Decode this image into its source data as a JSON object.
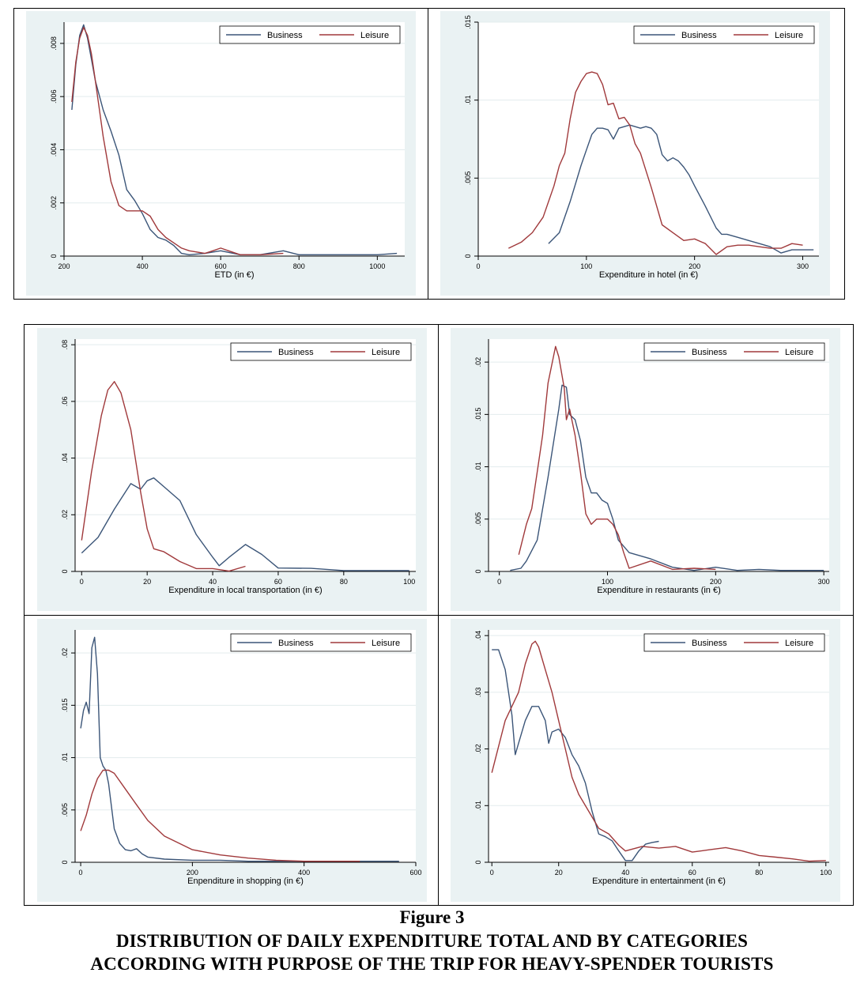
{
  "figure": {
    "number_label": "Figure 3",
    "title_line1": "DISTRIBUTION OF DAILY EXPENDITURE TOTAL AND BY CATEGORIES",
    "title_line2": "ACCORDING WITH PURPOSE OF THE TRIP FOR HEAVY-SPENDER TOURISTS"
  },
  "colors": {
    "business": "#3b5578",
    "leisure": "#a0393b",
    "plot_bg": "#eaf2f3",
    "plot_area": "#ffffff",
    "grid": "#e3eced"
  },
  "chart_data": [
    {
      "type": "line",
      "xlabel": "ETD (in €)",
      "ylabel": "",
      "xlim": [
        200,
        1070
      ],
      "ylim": [
        0,
        0.0088
      ],
      "xticks": [
        200,
        400,
        600,
        800,
        1000
      ],
      "xtick_labels": [
        "200",
        "400",
        "600",
        "800",
        "1000"
      ],
      "yticks": [
        0,
        0.002,
        0.004,
        0.006,
        0.008
      ],
      "ytick_labels": [
        "0",
        ".002",
        ".004",
        ".006",
        ".008"
      ],
      "legend": "top-right",
      "series": [
        {
          "name": "Business",
          "x": [
            220,
            230,
            240,
            250,
            260,
            270,
            280,
            300,
            320,
            340,
            360,
            380,
            400,
            420,
            440,
            460,
            480,
            500,
            520,
            560,
            600,
            650,
            700,
            760,
            800,
            900,
            1000,
            1050
          ],
          "y": [
            0.0055,
            0.0072,
            0.0083,
            0.0087,
            0.0082,
            0.0074,
            0.0066,
            0.0055,
            0.0047,
            0.0038,
            0.0025,
            0.0021,
            0.0016,
            0.001,
            0.0007,
            0.0006,
            0.0004,
            0.0001,
            5e-05,
            0.0001,
            0.0002,
            5e-05,
            5e-05,
            0.0002,
            5e-05,
            5e-05,
            5e-05,
            0.0001
          ]
        },
        {
          "name": "Leisure",
          "x": [
            220,
            230,
            240,
            250,
            260,
            270,
            280,
            300,
            320,
            340,
            360,
            380,
            400,
            420,
            440,
            460,
            480,
            500,
            520,
            560,
            580,
            600,
            620,
            650,
            700,
            760
          ],
          "y": [
            0.0058,
            0.0073,
            0.0082,
            0.0086,
            0.0083,
            0.0076,
            0.0066,
            0.0045,
            0.0028,
            0.0019,
            0.0017,
            0.0017,
            0.0017,
            0.0015,
            0.001,
            0.0007,
            0.0005,
            0.0003,
            0.0002,
            0.0001,
            0.0002,
            0.0003,
            0.0002,
            5e-05,
            5e-05,
            0.0001
          ]
        }
      ]
    },
    {
      "type": "line",
      "xlabel": "Expenditure in hotel (in €)",
      "ylabel": "",
      "xlim": [
        0,
        315
      ],
      "ylim": [
        0,
        0.015
      ],
      "xticks": [
        0,
        100,
        200,
        300
      ],
      "xtick_labels": [
        "0",
        "100",
        "200",
        "300"
      ],
      "yticks": [
        0,
        0.005,
        0.01,
        0.015
      ],
      "ytick_labels": [
        "0",
        ".005",
        ".01",
        ".015"
      ],
      "legend": "top-right",
      "series": [
        {
          "name": "Business",
          "x": [
            65,
            75,
            85,
            95,
            100,
            105,
            110,
            115,
            120,
            125,
            130,
            135,
            140,
            145,
            150,
            155,
            160,
            165,
            170,
            175,
            180,
            185,
            190,
            195,
            200,
            210,
            220,
            225,
            230,
            240,
            250,
            260,
            270,
            280,
            290,
            300,
            310
          ],
          "y": [
            0.0008,
            0.0015,
            0.0035,
            0.0058,
            0.0068,
            0.0078,
            0.0082,
            0.0082,
            0.0081,
            0.0075,
            0.0082,
            0.0083,
            0.0084,
            0.0083,
            0.0082,
            0.0083,
            0.0082,
            0.0078,
            0.0065,
            0.0061,
            0.0063,
            0.0061,
            0.0057,
            0.0052,
            0.0045,
            0.0032,
            0.0018,
            0.0014,
            0.0014,
            0.0012,
            0.001,
            0.0008,
            0.0006,
            0.0002,
            0.0004,
            0.0004,
            0.0004
          ]
        },
        {
          "name": "Leisure",
          "x": [
            28,
            40,
            50,
            60,
            70,
            75,
            80,
            85,
            90,
            95,
            100,
            105,
            110,
            115,
            120,
            125,
            130,
            135,
            140,
            145,
            150,
            160,
            170,
            180,
            190,
            200,
            210,
            220,
            230,
            240,
            250,
            260,
            270,
            280,
            290,
            300
          ],
          "y": [
            0.0005,
            0.0009,
            0.0015,
            0.0025,
            0.0045,
            0.0058,
            0.0066,
            0.0088,
            0.0105,
            0.0112,
            0.0117,
            0.0118,
            0.0117,
            0.011,
            0.0097,
            0.0098,
            0.0088,
            0.0089,
            0.0084,
            0.0072,
            0.0066,
            0.0044,
            0.002,
            0.0015,
            0.001,
            0.0011,
            0.0008,
            0.0001,
            0.0006,
            0.0007,
            0.0007,
            0.0006,
            0.0005,
            0.0005,
            0.0008,
            0.0007
          ]
        }
      ]
    },
    {
      "type": "line",
      "xlabel": "Expenditure in local transportation (in €)",
      "ylabel": "",
      "xlim": [
        -2,
        102
      ],
      "ylim": [
        0,
        0.082
      ],
      "xticks": [
        0,
        20,
        40,
        60,
        80,
        100
      ],
      "xtick_labels": [
        "0",
        "20",
        "40",
        "60",
        "80",
        "100"
      ],
      "yticks": [
        0,
        0.02,
        0.04,
        0.06,
        0.08
      ],
      "ytick_labels": [
        "0",
        ".02",
        ".04",
        ".06",
        ".08"
      ],
      "legend": "top-right",
      "series": [
        {
          "name": "Business",
          "x": [
            0,
            5,
            10,
            15,
            18,
            20,
            22,
            25,
            30,
            35,
            40,
            42,
            45,
            50,
            55,
            60,
            70,
            80,
            90,
            100
          ],
          "y": [
            0.0065,
            0.012,
            0.022,
            0.031,
            0.029,
            0.032,
            0.033,
            0.03,
            0.025,
            0.013,
            0.005,
            0.002,
            0.005,
            0.0095,
            0.006,
            0.0012,
            0.0011,
            0.0003,
            0.0003,
            0.0003
          ]
        },
        {
          "name": "Leisure",
          "x": [
            0,
            3,
            6,
            8,
            10,
            12,
            15,
            18,
            20,
            22,
            25,
            30,
            35,
            40,
            45,
            50
          ],
          "y": [
            0.011,
            0.035,
            0.055,
            0.064,
            0.067,
            0.063,
            0.05,
            0.028,
            0.015,
            0.008,
            0.007,
            0.0035,
            0.001,
            0.001,
            0.0001,
            0.0018
          ]
        }
      ]
    },
    {
      "type": "line",
      "xlabel": "Expenditure in restaurants (in €)",
      "ylabel": "",
      "xlim": [
        -10,
        305
      ],
      "ylim": [
        0,
        0.0222
      ],
      "xticks": [
        0,
        100,
        200,
        300
      ],
      "xtick_labels": [
        "0",
        "100",
        "200",
        "300"
      ],
      "yticks": [
        0,
        0.005,
        0.01,
        0.015,
        0.02
      ],
      "ytick_labels": [
        "0",
        ".005",
        ".01",
        ".015",
        ".02"
      ],
      "legend": "top-right",
      "series": [
        {
          "name": "Business",
          "x": [
            10,
            20,
            25,
            35,
            45,
            55,
            58,
            62,
            65,
            70,
            75,
            80,
            85,
            90,
            95,
            100,
            105,
            110,
            120,
            140,
            160,
            180,
            200,
            220,
            240,
            260,
            280,
            300
          ],
          "y": [
            0.0001,
            0.0003,
            0.001,
            0.003,
            0.009,
            0.0155,
            0.0178,
            0.0176,
            0.015,
            0.0145,
            0.0125,
            0.009,
            0.0075,
            0.0075,
            0.0068,
            0.0065,
            0.005,
            0.003,
            0.0018,
            0.0012,
            0.0004,
            0.0001,
            0.0004,
            0.0001,
            0.0002,
            0.0001,
            0.0001,
            0.0001
          ]
        },
        {
          "name": "Leisure",
          "x": [
            18,
            25,
            30,
            35,
            40,
            45,
            50,
            52,
            55,
            60,
            62,
            65,
            70,
            75,
            80,
            85,
            90,
            95,
            100,
            105,
            110,
            115,
            120,
            140,
            160,
            180,
            200
          ],
          "y": [
            0.0016,
            0.0045,
            0.006,
            0.0095,
            0.013,
            0.018,
            0.0205,
            0.0215,
            0.0205,
            0.0175,
            0.0145,
            0.0155,
            0.013,
            0.0095,
            0.0055,
            0.0045,
            0.005,
            0.005,
            0.005,
            0.0045,
            0.0035,
            0.0018,
            0.0003,
            0.001,
            0.0002,
            0.0003,
            0.0002
          ]
        }
      ]
    },
    {
      "type": "line",
      "xlabel": "Enpenditure in shopping (in €)",
      "ylabel": "",
      "xlim": [
        -10,
        600
      ],
      "ylim": [
        0,
        0.0222
      ],
      "xticks": [
        0,
        200,
        400,
        600
      ],
      "xtick_labels": [
        "0",
        "200",
        "400",
        "600"
      ],
      "yticks": [
        0,
        0.005,
        0.01,
        0.015,
        0.02
      ],
      "ytick_labels": [
        "0",
        ".005",
        ".01",
        ".015",
        ".02"
      ],
      "legend": "top-right",
      "series": [
        {
          "name": "Business",
          "x": [
            0,
            5,
            10,
            15,
            20,
            25,
            30,
            35,
            40,
            45,
            50,
            60,
            70,
            80,
            90,
            100,
            110,
            120,
            150,
            200,
            250,
            300,
            400,
            500,
            570
          ],
          "y": [
            0.0128,
            0.0145,
            0.0153,
            0.0142,
            0.0205,
            0.0215,
            0.018,
            0.01,
            0.0092,
            0.0088,
            0.0075,
            0.0032,
            0.0018,
            0.0012,
            0.0011,
            0.0013,
            0.0008,
            0.0005,
            0.0003,
            0.0002,
            0.0002,
            0.0001,
            0.0001,
            0.0001,
            0.0001
          ]
        },
        {
          "name": "Leisure",
          "x": [
            0,
            10,
            20,
            30,
            40,
            50,
            60,
            80,
            100,
            120,
            150,
            200,
            250,
            300,
            350,
            400,
            450,
            500
          ],
          "y": [
            0.003,
            0.0045,
            0.0065,
            0.008,
            0.0088,
            0.0088,
            0.0085,
            0.007,
            0.0055,
            0.004,
            0.0025,
            0.0012,
            0.0007,
            0.0004,
            0.0002,
            0.0001,
            0.0001,
            0.0001
          ]
        }
      ]
    },
    {
      "type": "line",
      "xlabel": "Expenditure in entertainment (in €)",
      "ylabel": "",
      "xlim": [
        -1,
        101
      ],
      "ylim": [
        0,
        0.041
      ],
      "xticks": [
        0,
        20,
        40,
        60,
        80,
        100
      ],
      "xtick_labels": [
        "0",
        "20",
        "40",
        "60",
        "80",
        "100"
      ],
      "yticks": [
        0,
        0.01,
        0.02,
        0.03,
        0.04
      ],
      "ytick_labels": [
        "0",
        ".01",
        ".02",
        ".03",
        ".04"
      ],
      "legend": "top-right",
      "series": [
        {
          "name": "Business",
          "x": [
            0,
            2,
            4,
            6,
            7,
            8,
            10,
            12,
            14,
            16,
            17,
            18,
            20,
            22,
            24,
            26,
            28,
            30,
            32,
            34,
            36,
            38,
            40,
            42,
            44,
            46,
            48,
            50
          ],
          "y": [
            0.0375,
            0.0375,
            0.034,
            0.026,
            0.019,
            0.021,
            0.025,
            0.0275,
            0.0275,
            0.025,
            0.021,
            0.023,
            0.0235,
            0.022,
            0.019,
            0.017,
            0.014,
            0.009,
            0.005,
            0.0045,
            0.0038,
            0.002,
            0.0003,
            0.0003,
            0.002,
            0.0032,
            0.0035,
            0.0037
          ]
        },
        {
          "name": "Leisure",
          "x": [
            0,
            4,
            8,
            10,
            12,
            13,
            14,
            16,
            18,
            20,
            22,
            24,
            26,
            30,
            32,
            35,
            38,
            40,
            45,
            50,
            55,
            60,
            65,
            70,
            75,
            80,
            85,
            90,
            95,
            100
          ],
          "y": [
            0.0158,
            0.025,
            0.03,
            0.035,
            0.0385,
            0.039,
            0.038,
            0.034,
            0.03,
            0.025,
            0.02,
            0.015,
            0.012,
            0.008,
            0.006,
            0.005,
            0.003,
            0.002,
            0.0028,
            0.0025,
            0.0028,
            0.0018,
            0.0022,
            0.0026,
            0.002,
            0.0012,
            0.0009,
            0.0006,
            0.0002,
            0.0003
          ]
        }
      ]
    }
  ]
}
